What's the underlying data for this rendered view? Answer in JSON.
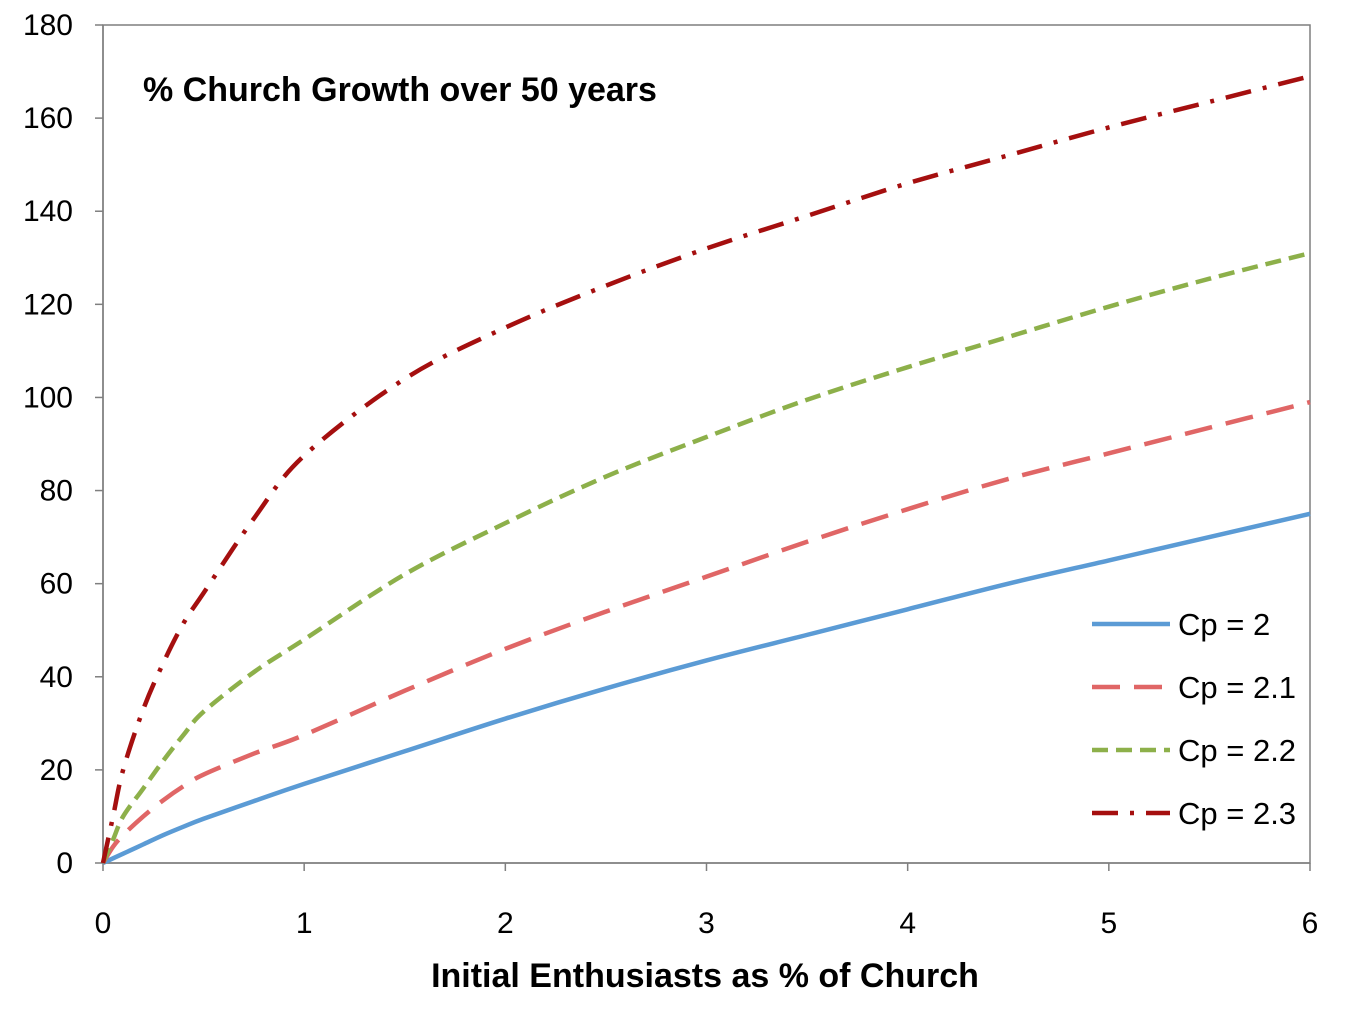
{
  "chart_data": {
    "type": "line",
    "title": "% Church Growth over 50 years",
    "xlabel": "Initial Enthusiasts as % of Church",
    "ylabel": "",
    "xlim": [
      0,
      6
    ],
    "ylim": [
      0,
      180
    ],
    "x_ticks": [
      "0",
      "1",
      "2",
      "3",
      "4",
      "5",
      "6"
    ],
    "y_ticks": [
      "0",
      "20",
      "40",
      "60",
      "80",
      "100",
      "120",
      "140",
      "160",
      "180"
    ],
    "grid": false,
    "legend_position": "right",
    "x": [
      0,
      0.05,
      0.1,
      0.2,
      0.3,
      0.4,
      0.5,
      0.75,
      1,
      1.5,
      2,
      2.5,
      3,
      3.5,
      4,
      4.5,
      5,
      5.5,
      6
    ],
    "series": [
      {
        "name": "Cp = 2",
        "color": "#5b9bd5",
        "style": "solid",
        "values": [
          0,
          1,
          2,
          4,
          6,
          7.8,
          9.5,
          13.3,
          17,
          24,
          31,
          37.5,
          43.5,
          49,
          54.5,
          60,
          65,
          70,
          75
        ]
      },
      {
        "name": "Cp = 2.1",
        "color": "#e06666",
        "style": "dashed",
        "values": [
          0,
          3.5,
          6,
          10,
          13.5,
          16.5,
          19,
          23.5,
          27.5,
          37,
          46,
          54,
          61.5,
          69,
          76,
          82.5,
          88,
          93.5,
          99
        ]
      },
      {
        "name": "Cp = 2.2",
        "color": "#8db04a",
        "style": "short-dashed",
        "values": [
          0,
          5,
          10,
          16,
          22,
          27.5,
          32.5,
          41,
          48,
          62,
          73,
          83,
          91.5,
          99.5,
          106.5,
          113,
          119.5,
          125.5,
          131
        ]
      },
      {
        "name": "Cp = 2.3",
        "color": "#a50f0f",
        "style": "dash-dot",
        "values": [
          0,
          10,
          20,
          33,
          43,
          51.5,
          58,
          74,
          87.5,
          104,
          115,
          124,
          132,
          139,
          146,
          152,
          158,
          163.5,
          169
        ]
      }
    ]
  }
}
